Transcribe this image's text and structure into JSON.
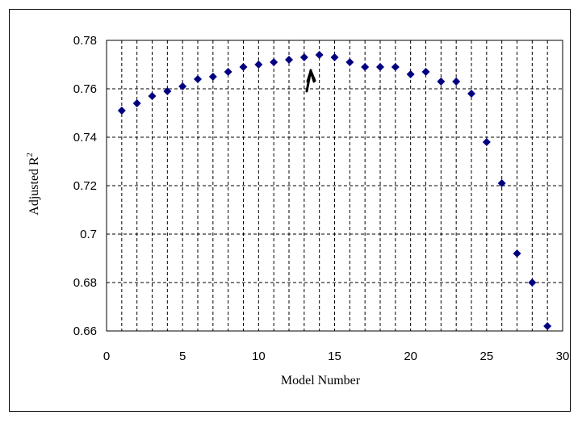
{
  "chart_data": {
    "type": "scatter",
    "title": "",
    "xlabel": "Model Number",
    "ylabel": "Adjusted R",
    "ylabel_superscript": "2",
    "xlim": [
      0,
      30
    ],
    "ylim": [
      0.66,
      0.78
    ],
    "x_ticks": [
      "0",
      "5",
      "10",
      "15",
      "20",
      "25",
      "30"
    ],
    "y_ticks": [
      "0.66",
      "0.68",
      "0.7",
      "0.72",
      "0.74",
      "0.76",
      "0.78"
    ],
    "grid": "dashed, vertical every 1 model, horizontal every 0.02",
    "legend": "none",
    "marker_color": "#000080",
    "annotation": "hand-drawn arrow pointing to model 14",
    "x": [
      1,
      2,
      3,
      4,
      5,
      6,
      7,
      8,
      9,
      10,
      11,
      12,
      13,
      14,
      15,
      16,
      17,
      18,
      19,
      20,
      21,
      22,
      23,
      24,
      25,
      26,
      27,
      28,
      29
    ],
    "y": [
      0.751,
      0.754,
      0.757,
      0.759,
      0.761,
      0.764,
      0.765,
      0.767,
      0.769,
      0.77,
      0.771,
      0.772,
      0.773,
      0.774,
      0.773,
      0.771,
      0.769,
      0.769,
      0.769,
      0.766,
      0.767,
      0.763,
      0.763,
      0.758,
      0.738,
      0.721,
      0.692,
      0.68,
      0.662
    ]
  }
}
